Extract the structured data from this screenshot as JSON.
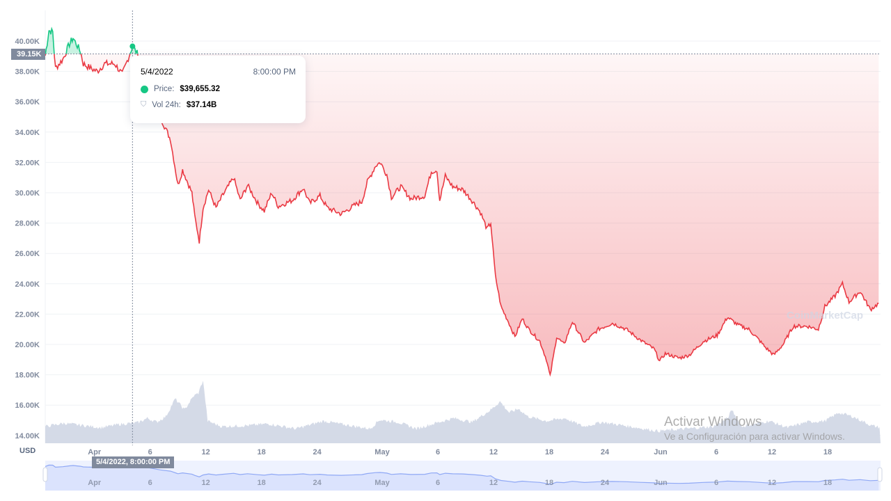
{
  "chart_data": {
    "type": "line",
    "title": "",
    "currency_label": "USD",
    "baseline_label": "39.15K",
    "baseline": 39150,
    "ylim": [
      13000,
      41500
    ],
    "y_ticks": [
      "14.00K",
      "16.00K",
      "18.00K",
      "20.00K",
      "22.00K",
      "24.00K",
      "26.00K",
      "28.00K",
      "30.00K",
      "32.00K",
      "34.00K",
      "36.00K",
      "38.00K",
      "40.00K"
    ],
    "y_tick_values": [
      14000,
      16000,
      18000,
      20000,
      22000,
      24000,
      26000,
      28000,
      30000,
      32000,
      34000,
      36000,
      38000,
      40000
    ],
    "x_ticks": [
      {
        "label": "Apr",
        "day": 5.3
      },
      {
        "label": "6",
        "day": 11.3
      },
      {
        "label": "12",
        "day": 17.3
      },
      {
        "label": "18",
        "day": 23.3
      },
      {
        "label": "24",
        "day": 29.3
      },
      {
        "label": "May",
        "day": 36.3
      },
      {
        "label": "6",
        "day": 42.3
      },
      {
        "label": "12",
        "day": 48.3
      },
      {
        "label": "18",
        "day": 54.3
      },
      {
        "label": "24",
        "day": 60.3
      },
      {
        "label": "Jun",
        "day": 66.3
      },
      {
        "label": "6",
        "day": 72.3
      },
      {
        "label": "12",
        "day": 78.3
      },
      {
        "label": "18",
        "day": 84.3
      }
    ],
    "xlim_days": [
      0,
      90
    ],
    "price_series": [
      [
        0,
        39040
      ],
      [
        0.4,
        40700
      ],
      [
        0.8,
        40600
      ],
      [
        1.1,
        38200
      ],
      [
        1.9,
        38800
      ],
      [
        2.6,
        39800
      ],
      [
        3.0,
        40200
      ],
      [
        3.8,
        39300
      ],
      [
        4.1,
        38500
      ],
      [
        4.9,
        38200
      ],
      [
        5.6,
        38000
      ],
      [
        6.4,
        38500
      ],
      [
        7.5,
        38500
      ],
      [
        8.3,
        37800
      ],
      [
        8.6,
        38300
      ],
      [
        9.4,
        39655
      ],
      [
        9.9,
        39200
      ],
      [
        10.9,
        38000
      ],
      [
        12.4,
        35000
      ],
      [
        13.5,
        33500
      ],
      [
        14.3,
        30500
      ],
      [
        14.8,
        31500
      ],
      [
        15.8,
        30000
      ],
      [
        16.1,
        28500
      ],
      [
        16.6,
        26800
      ],
      [
        17.0,
        29000
      ],
      [
        17.6,
        30200
      ],
      [
        18.4,
        29000
      ],
      [
        19.1,
        29800
      ],
      [
        20.3,
        31000
      ],
      [
        21.0,
        29500
      ],
      [
        21.8,
        30500
      ],
      [
        22.9,
        29300
      ],
      [
        23.6,
        28800
      ],
      [
        24.4,
        30000
      ],
      [
        25.1,
        29100
      ],
      [
        26.6,
        29500
      ],
      [
        27.8,
        30300
      ],
      [
        28.5,
        29300
      ],
      [
        29.6,
        29800
      ],
      [
        30.4,
        29000
      ],
      [
        31.9,
        28600
      ],
      [
        33.4,
        29200
      ],
      [
        34.1,
        29400
      ],
      [
        34.7,
        30700
      ],
      [
        35.6,
        31800
      ],
      [
        36.1,
        32000
      ],
      [
        36.8,
        31200
      ],
      [
        37.3,
        29700
      ],
      [
        38.3,
        30400
      ],
      [
        39.4,
        29600
      ],
      [
        40.9,
        29800
      ],
      [
        41.6,
        31400
      ],
      [
        42.2,
        31500
      ],
      [
        42.5,
        29500
      ],
      [
        43.1,
        31100
      ],
      [
        43.9,
        30400
      ],
      [
        45.0,
        30200
      ],
      [
        46.1,
        29400
      ],
      [
        46.9,
        28700
      ],
      [
        47.6,
        27600
      ],
      [
        48.0,
        28000
      ],
      [
        48.5,
        24500
      ],
      [
        49.1,
        22500
      ],
      [
        49.9,
        21500
      ],
      [
        50.6,
        20500
      ],
      [
        51.4,
        21700
      ],
      [
        52.1,
        21000
      ],
      [
        53.3,
        20200
      ],
      [
        54.0,
        19000
      ],
      [
        54.4,
        17900
      ],
      [
        55.1,
        20500
      ],
      [
        55.9,
        20000
      ],
      [
        56.8,
        21500
      ],
      [
        58.1,
        20100
      ],
      [
        59.6,
        21000
      ],
      [
        61.1,
        21400
      ],
      [
        62.6,
        21000
      ],
      [
        64.1,
        20300
      ],
      [
        65.6,
        19700
      ],
      [
        66.2,
        18900
      ],
      [
        66.8,
        19400
      ],
      [
        68.3,
        19100
      ],
      [
        69.4,
        19300
      ],
      [
        70.9,
        20200
      ],
      [
        72.4,
        20600
      ],
      [
        73.5,
        21800
      ],
      [
        74.6,
        21300
      ],
      [
        75.8,
        21000
      ],
      [
        76.9,
        20300
      ],
      [
        77.6,
        19800
      ],
      [
        78.5,
        19300
      ],
      [
        79.5,
        20000
      ],
      [
        80.6,
        21200
      ],
      [
        82.1,
        21200
      ],
      [
        83.3,
        21000
      ],
      [
        84.0,
        22500
      ],
      [
        85.1,
        23200
      ],
      [
        85.9,
        24000
      ],
      [
        86.6,
        22800
      ],
      [
        87.8,
        23500
      ],
      [
        88.9,
        22300
      ],
      [
        89.8,
        22700
      ]
    ],
    "volume_series_billions": [
      [
        0,
        30
      ],
      [
        2,
        36
      ],
      [
        4,
        32
      ],
      [
        6,
        28
      ],
      [
        8,
        34
      ],
      [
        10,
        37.14
      ],
      [
        11,
        45
      ],
      [
        12,
        38
      ],
      [
        13,
        48
      ],
      [
        14,
        80
      ],
      [
        15,
        60
      ],
      [
        16,
        85
      ],
      [
        16.5,
        90
      ],
      [
        17,
        113
      ],
      [
        17.5,
        40
      ],
      [
        19,
        30
      ],
      [
        22,
        32
      ],
      [
        24,
        35
      ],
      [
        27,
        26
      ],
      [
        30,
        40
      ],
      [
        32,
        34
      ],
      [
        35,
        26
      ],
      [
        36,
        42
      ],
      [
        38,
        38
      ],
      [
        40,
        26
      ],
      [
        42,
        36
      ],
      [
        44,
        45
      ],
      [
        46,
        38
      ],
      [
        48,
        60
      ],
      [
        49,
        75
      ],
      [
        50,
        55
      ],
      [
        51,
        62
      ],
      [
        52,
        48
      ],
      [
        54,
        40
      ],
      [
        56,
        45
      ],
      [
        58,
        30
      ],
      [
        60,
        38
      ],
      [
        63,
        30
      ],
      [
        66,
        22
      ],
      [
        69,
        26
      ],
      [
        72,
        30
      ],
      [
        73.5,
        45
      ],
      [
        74,
        60
      ],
      [
        75,
        30
      ],
      [
        78,
        40
      ],
      [
        80,
        28
      ],
      [
        82,
        38
      ],
      [
        84,
        40
      ],
      [
        85.5,
        55
      ],
      [
        87,
        48
      ],
      [
        89,
        32
      ],
      [
        90,
        28
      ]
    ]
  },
  "tooltip": {
    "date": "5/4/2022",
    "time": "8:00:00 PM",
    "price_label": "Price:",
    "price_value": "$39,655.32",
    "vol_label": "Vol 24h:",
    "vol_value": "$37.14B",
    "hover_day": 9.4
  },
  "crosshair_label": "5/4/2022, 8:00:00 PM",
  "watermark": {
    "brand": "CoinMarketCap",
    "activate_title": "Activar Windows",
    "activate_sub": "Ve a Configuración para activar Windows."
  },
  "colors": {
    "up": "#16c784",
    "down": "#ea3943",
    "volume": "#cfd6e4",
    "minimap": "#8fa8f5"
  }
}
